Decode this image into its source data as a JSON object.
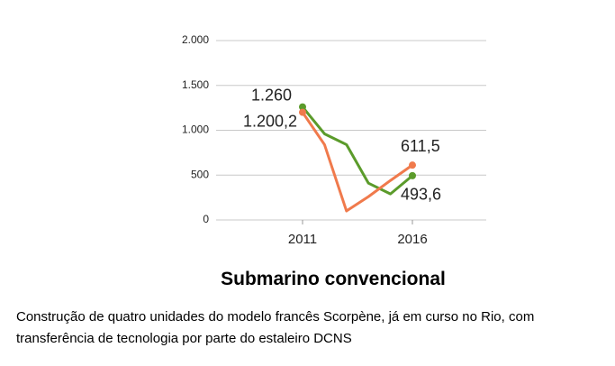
{
  "chart_data": {
    "type": "line",
    "title": "Submarino convencional",
    "subtitle": "Construção de quatro unidades do modelo francês Scorpène, já em curso no Rio, com transferência de tecnologia por parte do estaleiro DCNS",
    "categories": [
      "2011",
      null,
      null,
      null,
      null,
      "2016"
    ],
    "series": [
      {
        "color": "#5b9b2b",
        "values": [
          1260,
          960,
          840,
          410,
          290,
          493.6
        ],
        "value_labels": [
          "1.260",
          null,
          null,
          null,
          null,
          "493,6"
        ]
      },
      {
        "color": "#f07a4c",
        "values": [
          1200.2,
          840,
          100,
          260,
          440,
          611.5
        ],
        "value_labels": [
          "1.200,2",
          null,
          null,
          null,
          null,
          "611,5"
        ]
      }
    ],
    "ylim": [
      0,
      2000
    ],
    "yticks": [
      {
        "value": 0,
        "label": "0"
      },
      {
        "value": 500,
        "label": "500"
      },
      {
        "value": 1000,
        "label": "1.000"
      },
      {
        "value": 1500,
        "label": "1.500"
      },
      {
        "value": 2000,
        "label": "2.000"
      }
    ],
    "grid": true
  }
}
